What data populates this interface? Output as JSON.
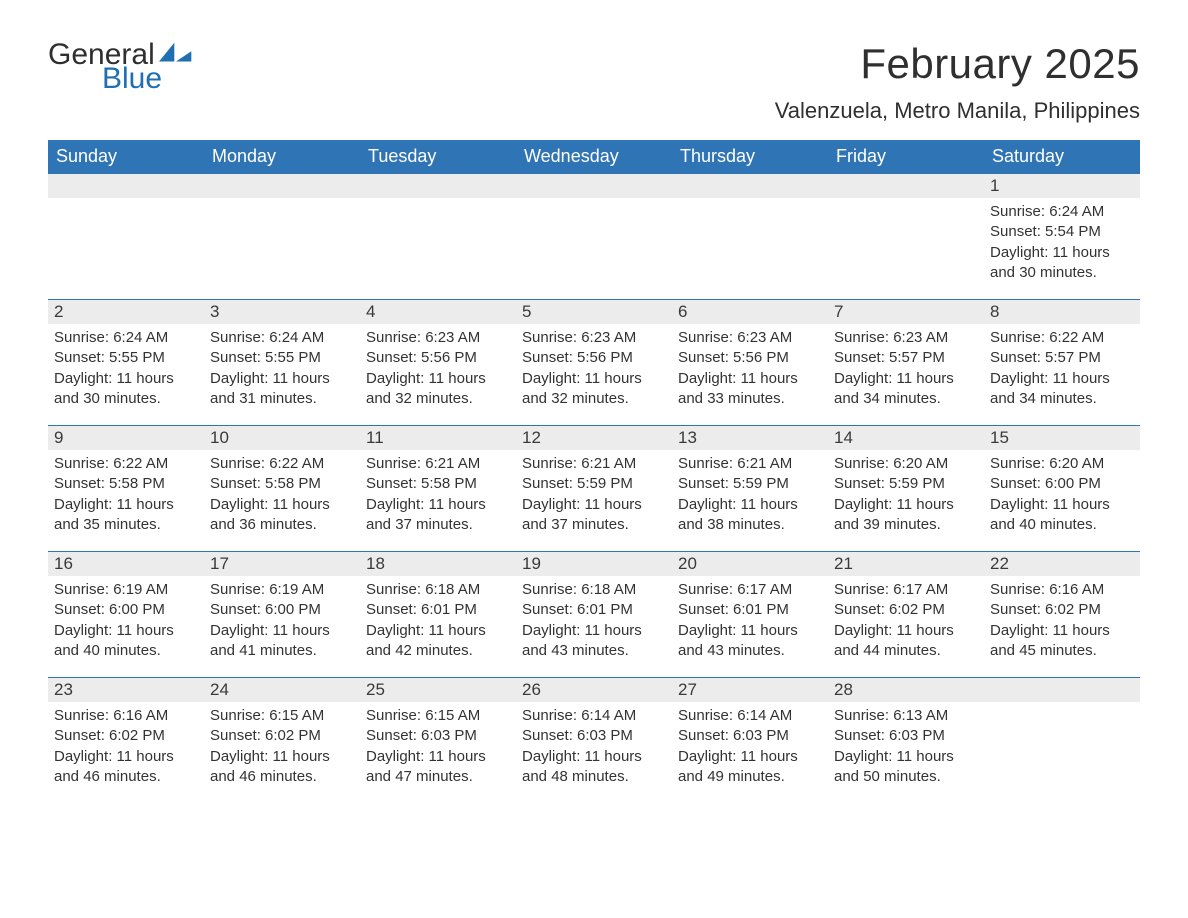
{
  "brand": {
    "word1": "General",
    "word2": "Blue",
    "text_color": "#2f2f2f",
    "accent_color": "#1f6fb2"
  },
  "title": "February 2025",
  "location": "Valenzuela, Metro Manila, Philippines",
  "theme": {
    "header_bg": "#2f74b5",
    "header_text": "#ffffff",
    "daynum_bg": "#ececec",
    "daynum_border": "#2f74b5",
    "body_text": "#333333",
    "page_bg": "#ffffff"
  },
  "weekdays": [
    "Sunday",
    "Monday",
    "Tuesday",
    "Wednesday",
    "Thursday",
    "Friday",
    "Saturday"
  ],
  "labels": {
    "sunrise": "Sunrise",
    "sunset": "Sunset",
    "daylight": "Daylight"
  },
  "calendar": {
    "first_weekday_index": 6,
    "days": [
      {
        "n": 1,
        "sunrise": "6:24 AM",
        "sunset": "5:54 PM",
        "daylight": "11 hours and 30 minutes."
      },
      {
        "n": 2,
        "sunrise": "6:24 AM",
        "sunset": "5:55 PM",
        "daylight": "11 hours and 30 minutes."
      },
      {
        "n": 3,
        "sunrise": "6:24 AM",
        "sunset": "5:55 PM",
        "daylight": "11 hours and 31 minutes."
      },
      {
        "n": 4,
        "sunrise": "6:23 AM",
        "sunset": "5:56 PM",
        "daylight": "11 hours and 32 minutes."
      },
      {
        "n": 5,
        "sunrise": "6:23 AM",
        "sunset": "5:56 PM",
        "daylight": "11 hours and 32 minutes."
      },
      {
        "n": 6,
        "sunrise": "6:23 AM",
        "sunset": "5:56 PM",
        "daylight": "11 hours and 33 minutes."
      },
      {
        "n": 7,
        "sunrise": "6:23 AM",
        "sunset": "5:57 PM",
        "daylight": "11 hours and 34 minutes."
      },
      {
        "n": 8,
        "sunrise": "6:22 AM",
        "sunset": "5:57 PM",
        "daylight": "11 hours and 34 minutes."
      },
      {
        "n": 9,
        "sunrise": "6:22 AM",
        "sunset": "5:58 PM",
        "daylight": "11 hours and 35 minutes."
      },
      {
        "n": 10,
        "sunrise": "6:22 AM",
        "sunset": "5:58 PM",
        "daylight": "11 hours and 36 minutes."
      },
      {
        "n": 11,
        "sunrise": "6:21 AM",
        "sunset": "5:58 PM",
        "daylight": "11 hours and 37 minutes."
      },
      {
        "n": 12,
        "sunrise": "6:21 AM",
        "sunset": "5:59 PM",
        "daylight": "11 hours and 37 minutes."
      },
      {
        "n": 13,
        "sunrise": "6:21 AM",
        "sunset": "5:59 PM",
        "daylight": "11 hours and 38 minutes."
      },
      {
        "n": 14,
        "sunrise": "6:20 AM",
        "sunset": "5:59 PM",
        "daylight": "11 hours and 39 minutes."
      },
      {
        "n": 15,
        "sunrise": "6:20 AM",
        "sunset": "6:00 PM",
        "daylight": "11 hours and 40 minutes."
      },
      {
        "n": 16,
        "sunrise": "6:19 AM",
        "sunset": "6:00 PM",
        "daylight": "11 hours and 40 minutes."
      },
      {
        "n": 17,
        "sunrise": "6:19 AM",
        "sunset": "6:00 PM",
        "daylight": "11 hours and 41 minutes."
      },
      {
        "n": 18,
        "sunrise": "6:18 AM",
        "sunset": "6:01 PM",
        "daylight": "11 hours and 42 minutes."
      },
      {
        "n": 19,
        "sunrise": "6:18 AM",
        "sunset": "6:01 PM",
        "daylight": "11 hours and 43 minutes."
      },
      {
        "n": 20,
        "sunrise": "6:17 AM",
        "sunset": "6:01 PM",
        "daylight": "11 hours and 43 minutes."
      },
      {
        "n": 21,
        "sunrise": "6:17 AM",
        "sunset": "6:02 PM",
        "daylight": "11 hours and 44 minutes."
      },
      {
        "n": 22,
        "sunrise": "6:16 AM",
        "sunset": "6:02 PM",
        "daylight": "11 hours and 45 minutes."
      },
      {
        "n": 23,
        "sunrise": "6:16 AM",
        "sunset": "6:02 PM",
        "daylight": "11 hours and 46 minutes."
      },
      {
        "n": 24,
        "sunrise": "6:15 AM",
        "sunset": "6:02 PM",
        "daylight": "11 hours and 46 minutes."
      },
      {
        "n": 25,
        "sunrise": "6:15 AM",
        "sunset": "6:03 PM",
        "daylight": "11 hours and 47 minutes."
      },
      {
        "n": 26,
        "sunrise": "6:14 AM",
        "sunset": "6:03 PM",
        "daylight": "11 hours and 48 minutes."
      },
      {
        "n": 27,
        "sunrise": "6:14 AM",
        "sunset": "6:03 PM",
        "daylight": "11 hours and 49 minutes."
      },
      {
        "n": 28,
        "sunrise": "6:13 AM",
        "sunset": "6:03 PM",
        "daylight": "11 hours and 50 minutes."
      }
    ]
  }
}
